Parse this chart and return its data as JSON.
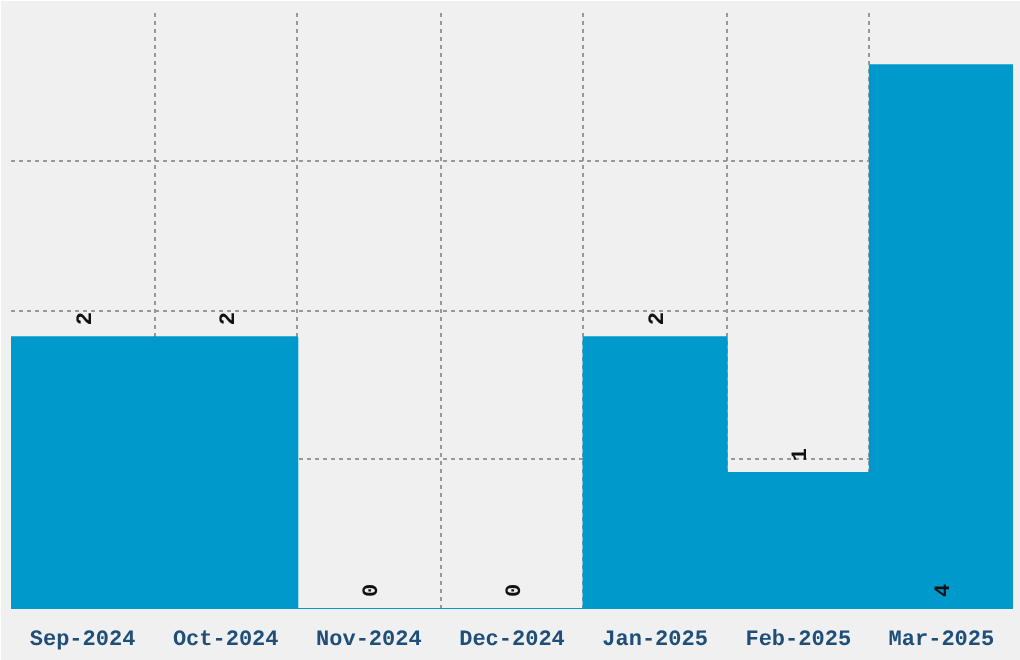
{
  "chart_data": {
    "type": "bar",
    "categories": [
      "Sep-2024",
      "Oct-2024",
      "Nov-2024",
      "Dec-2024",
      "Jan-2025",
      "Feb-2025",
      "Mar-2025"
    ],
    "values": [
      2,
      2,
      0,
      0,
      2,
      1,
      4
    ],
    "color": "#0099cc",
    "ylim": [
      0,
      4.4
    ],
    "grid": true,
    "data_labels": true,
    "tick_labels": "x"
  }
}
